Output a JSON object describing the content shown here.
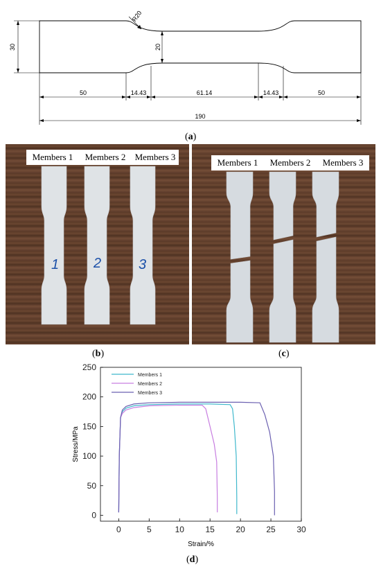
{
  "panel_a": {
    "label": "a",
    "dims": {
      "radius": "R20",
      "height_total": "30",
      "height_neck": "20",
      "seg_left": "50",
      "seg_fillet_left": "14.43",
      "seg_neck": "61.14",
      "seg_fillet_right": "14.43",
      "seg_right": "50",
      "total_length": "190"
    }
  },
  "panel_b": {
    "label": "b",
    "members": [
      "Members 1",
      "Members 2",
      "Members 3"
    ],
    "handwritten": [
      "1",
      "2",
      "3"
    ]
  },
  "panel_c": {
    "label": "c",
    "members": [
      "Members 1",
      "Members 2",
      "Members 3"
    ]
  },
  "panel_d": {
    "label": "d",
    "chart_data": {
      "type": "line",
      "xlabel": "Strain/%",
      "ylabel": "Stress/MPa",
      "xlim": [
        -3,
        30
      ],
      "ylim": [
        -10,
        250
      ],
      "xticks": [
        0,
        5,
        10,
        15,
        20,
        25,
        30
      ],
      "yticks": [
        0,
        50,
        100,
        150,
        200,
        250
      ],
      "legend_position": "top-left",
      "series": [
        {
          "name": "Members 1",
          "color": "#3fb8cc",
          "x": [
            0,
            0.1,
            0.3,
            0.6,
            1.2,
            2.5,
            5,
            10,
            15,
            18.3,
            18.7,
            19.0,
            19.3,
            19.4,
            19.4
          ],
          "y": [
            5,
            100,
            165,
            175,
            181,
            185,
            187,
            188,
            188,
            187,
            180,
            150,
            100,
            30,
            2
          ]
        },
        {
          "name": "Members 2",
          "color": "#c77de0",
          "x": [
            0,
            0.1,
            0.3,
            0.6,
            1.2,
            2.5,
            5,
            10,
            13.7,
            14.3,
            15.0,
            15.7,
            16.1,
            16.2,
            16.2
          ],
          "y": [
            5,
            100,
            165,
            172,
            178,
            182,
            185,
            186,
            186,
            180,
            150,
            120,
            90,
            30,
            5
          ]
        },
        {
          "name": "Members 3",
          "color": "#6a5fb0",
          "x": [
            0,
            0.1,
            0.3,
            0.6,
            1.2,
            2.5,
            5,
            10,
            15,
            20,
            23.2,
            24.0,
            24.8,
            25.4,
            25.6,
            25.6
          ],
          "y": [
            5,
            100,
            165,
            178,
            184,
            188,
            190,
            191,
            191,
            191,
            190,
            170,
            140,
            100,
            40,
            0
          ]
        }
      ]
    }
  }
}
